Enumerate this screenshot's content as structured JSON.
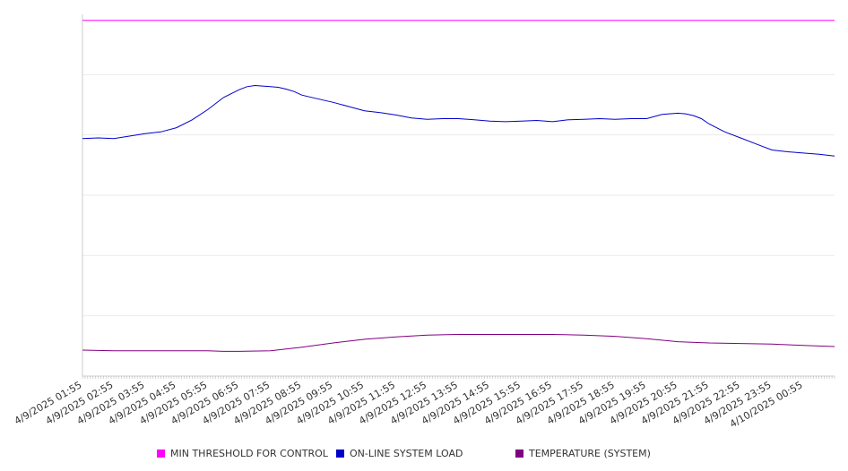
{
  "chart_data": {
    "type": "line",
    "x_ticks": [
      "4/9/2025 01:55",
      "4/9/2025 02:55",
      "4/9/2025 03:55",
      "4/9/2025 04:55",
      "4/9/2025 05:55",
      "4/9/2025 06:55",
      "4/9/2025 07:55",
      "4/9/2025 08:55",
      "4/9/2025 09:55",
      "4/9/2025 10:55",
      "4/9/2025 11:55",
      "4/9/2025 12:55",
      "4/9/2025 13:55",
      "4/9/2025 14:55",
      "4/9/2025 15:55",
      "4/9/2025 16:55",
      "4/9/2025 17:55",
      "4/9/2025 18:55",
      "4/9/2025 19:55",
      "4/9/2025 20:55",
      "4/9/2025 21:55",
      "4/9/2025 22:55",
      "4/9/2025 23:55",
      "4/10/2025 00:55"
    ],
    "ylim": [
      0,
      6
    ],
    "y_grid": [
      1,
      2,
      3,
      4,
      5
    ],
    "grid": true,
    "legend_position": "bottom",
    "series": [
      {
        "name": "MIN THRESHOLD FOR CONTROL",
        "color": "#ff00ff",
        "x": [
          0,
          24
        ],
        "values": [
          5.9,
          5.9
        ]
      },
      {
        "name": "ON-LINE SYSTEM LOAD",
        "color": "#0000cc",
        "x": [
          0,
          0.5,
          1,
          1.5,
          2,
          2.5,
          3,
          3.5,
          4,
          4.5,
          5,
          5.25,
          5.5,
          5.75,
          6,
          6.25,
          6.5,
          6.75,
          7,
          7.5,
          8,
          8.5,
          9,
          9.5,
          10,
          10.5,
          11,
          11.5,
          12,
          12.5,
          13,
          13.5,
          14,
          14.5,
          15,
          15.5,
          16,
          16.5,
          17,
          17.5,
          18,
          18.5,
          19,
          19.25,
          19.5,
          19.75,
          20,
          20.5,
          21,
          21.5,
          22,
          22.5,
          23,
          23.5,
          24
        ],
        "values": [
          3.94,
          3.95,
          3.94,
          3.98,
          4.02,
          4.05,
          4.12,
          4.25,
          4.42,
          4.62,
          4.75,
          4.8,
          4.82,
          4.81,
          4.8,
          4.79,
          4.76,
          4.72,
          4.66,
          4.6,
          4.54,
          4.47,
          4.4,
          4.37,
          4.33,
          4.28,
          4.26,
          4.27,
          4.27,
          4.25,
          4.23,
          4.22,
          4.23,
          4.24,
          4.22,
          4.25,
          4.26,
          4.27,
          4.26,
          4.27,
          4.27,
          4.34,
          4.36,
          4.35,
          4.32,
          4.27,
          4.18,
          4.05,
          3.95,
          3.85,
          3.75,
          3.72,
          3.7,
          3.68,
          3.65
        ]
      },
      {
        "name": "TEMPERATURE (SYSTEM)",
        "color": "#800080",
        "x": [
          0,
          1,
          2,
          3,
          4,
          4.5,
          5,
          6,
          7,
          8,
          9,
          10,
          11,
          12,
          13,
          14,
          15,
          16,
          17,
          18,
          19,
          20,
          21,
          22,
          23,
          24
        ],
        "values": [
          0.43,
          0.42,
          0.42,
          0.42,
          0.42,
          0.41,
          0.41,
          0.42,
          0.48,
          0.55,
          0.61,
          0.65,
          0.68,
          0.69,
          0.69,
          0.69,
          0.69,
          0.68,
          0.66,
          0.62,
          0.57,
          0.55,
          0.54,
          0.53,
          0.51,
          0.49
        ]
      }
    ]
  }
}
